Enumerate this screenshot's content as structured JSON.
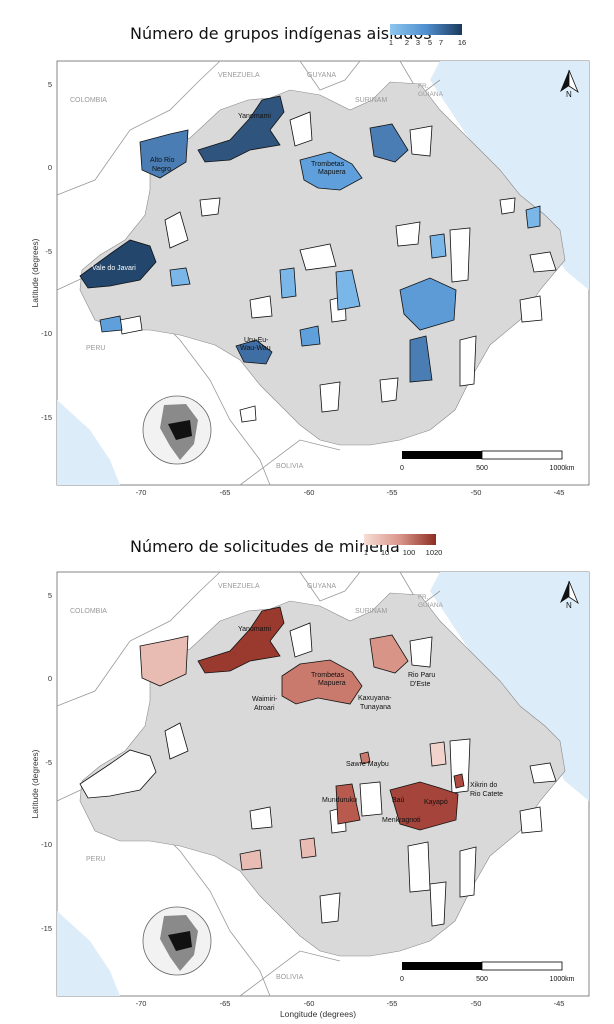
{
  "panels": [
    {
      "legend": {
        "title": "Número de grupos indígenas aislados",
        "ticks": [
          "1",
          "2",
          "3",
          "5",
          "7",
          "16"
        ],
        "color_low": "#8ec6ee",
        "color_high": "#1b3a5c"
      },
      "labels": [
        "Yanomami",
        "Alto Rio\nNegro",
        "Trombetas\nMapuera",
        "Vale do Javari",
        "Uru-Eu-\nWau-Wau"
      ]
    },
    {
      "legend": {
        "title": "Número de solicitudes de minería",
        "ticks": [
          "1",
          "10",
          "100",
          "1020"
        ],
        "color_low": "#f7ded6",
        "color_high": "#8e2e22"
      },
      "labels": [
        "Yanomami",
        "Waimiri-\nAtroari",
        "Trombetas\nMapuera",
        "Kaxuyana-\nTunayana",
        "Rio Paru\nD'Este",
        "Sawre Maybu",
        "Munduruku",
        "Baú",
        "Kayapó",
        "Menkragnoti",
        "Xikrin do\nRio Catete"
      ]
    }
  ],
  "countries": [
    "COLOMBIA",
    "VENEZUELA",
    "GUYANA",
    "SURINAM",
    "FR.\nGUIANA",
    "PERU",
    "BOLIVIA"
  ],
  "axes": {
    "x_label": "Longitude (degrees)",
    "y_label": "Latitude (degrees)",
    "x_ticks": [
      "-70",
      "-65",
      "-60",
      "-55",
      "-50",
      "-45"
    ],
    "y_ticks": [
      "5",
      "0",
      "-5",
      "-10",
      "-15"
    ]
  },
  "scalebar": {
    "labels": [
      "0",
      "500",
      "1000km"
    ]
  },
  "north_label": "N",
  "colors": {
    "land": "#d9d9d9",
    "ocean": "#dcecf9",
    "outside": "#ffffff",
    "border": "#9a9a9a",
    "country_text": "#9a9a9a"
  }
}
